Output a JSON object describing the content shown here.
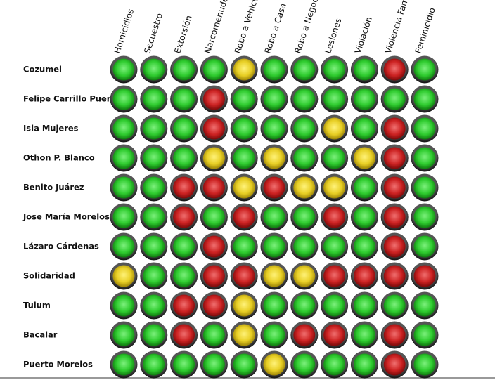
{
  "table": {
    "columns": [
      "Homicidios",
      "Secuestro",
      "Extorsión",
      "Narcomenudeo",
      "Robo a Vehicul",
      "Robo a Casa",
      "Robo a Negoci",
      "Lesiones",
      "Violación",
      "Violencia Fam",
      "Feminicidio"
    ],
    "rows": [
      {
        "label": "Cozumel",
        "cells": [
          "green",
          "green",
          "green",
          "green",
          "yellow",
          "green",
          "green",
          "green",
          "green",
          "red",
          "green"
        ]
      },
      {
        "label": "Felipe Carrillo Puerto",
        "cells": [
          "green",
          "green",
          "green",
          "red",
          "green",
          "green",
          "green",
          "green",
          "green",
          "green",
          "green"
        ]
      },
      {
        "label": "Isla Mujeres",
        "cells": [
          "green",
          "green",
          "green",
          "red",
          "green",
          "green",
          "green",
          "yellow",
          "green",
          "red",
          "green"
        ]
      },
      {
        "label": "Othon P. Blanco",
        "cells": [
          "green",
          "green",
          "green",
          "yellow",
          "green",
          "yellow",
          "green",
          "green",
          "yellow",
          "red",
          "green"
        ]
      },
      {
        "label": "Benito Juárez",
        "cells": [
          "green",
          "green",
          "red",
          "red",
          "yellow",
          "red",
          "yellow",
          "yellow",
          "green",
          "red",
          "green"
        ]
      },
      {
        "label": "Jose María Morelos",
        "cells": [
          "green",
          "green",
          "red",
          "green",
          "red",
          "green",
          "green",
          "red",
          "green",
          "red",
          "green"
        ]
      },
      {
        "label": "Lázaro Cárdenas",
        "cells": [
          "green",
          "green",
          "green",
          "red",
          "green",
          "green",
          "green",
          "green",
          "green",
          "red",
          "green"
        ]
      },
      {
        "label": "Solidaridad",
        "cells": [
          "yellow",
          "green",
          "green",
          "red",
          "red",
          "yellow",
          "yellow",
          "red",
          "red",
          "red",
          "red"
        ]
      },
      {
        "label": "Tulum",
        "cells": [
          "green",
          "green",
          "red",
          "red",
          "yellow",
          "green",
          "green",
          "green",
          "green",
          "green",
          "green"
        ]
      },
      {
        "label": "Bacalar",
        "cells": [
          "green",
          "green",
          "red",
          "green",
          "yellow",
          "green",
          "red",
          "red",
          "green",
          "red",
          "green"
        ]
      },
      {
        "label": "Puerto Morelos",
        "cells": [
          "green",
          "green",
          "green",
          "green",
          "green",
          "yellow",
          "green",
          "green",
          "green",
          "red",
          "green"
        ]
      }
    ]
  }
}
